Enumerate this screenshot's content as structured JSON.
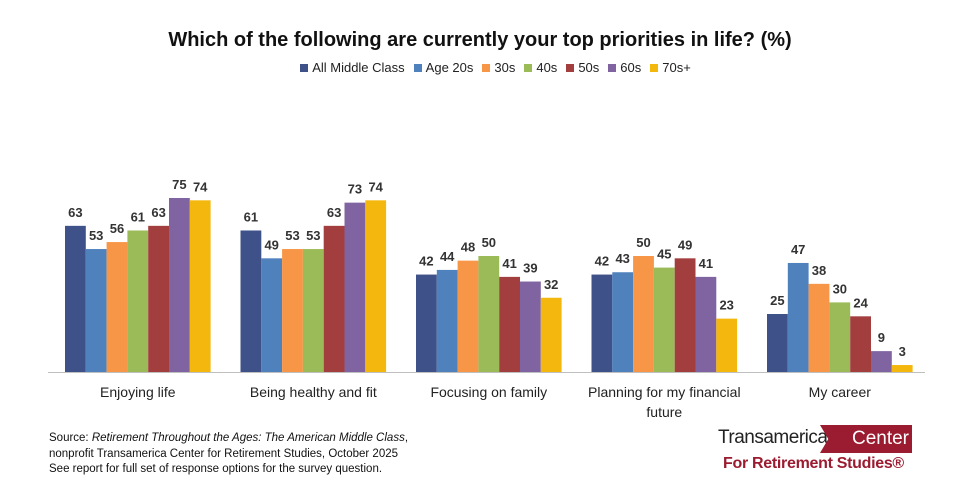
{
  "chart_data": {
    "type": "bar",
    "title": "Which of the following are currently your top priorities in life? (%)",
    "categories": [
      "Enjoying life",
      "Being healthy and fit",
      "Focusing on family",
      "Planning for my financial future",
      "My career"
    ],
    "series": [
      {
        "name": "All Middle Class",
        "color": "#3f5189",
        "values": [
          63,
          61,
          42,
          42,
          25
        ]
      },
      {
        "name": "Age 20s",
        "color": "#4f81bd",
        "values": [
          53,
          49,
          44,
          43,
          47
        ]
      },
      {
        "name": "30s",
        "color": "#f79646",
        "values": [
          56,
          53,
          48,
          50,
          38
        ]
      },
      {
        "name": "40s",
        "color": "#9bbb59",
        "values": [
          61,
          53,
          50,
          45,
          30
        ]
      },
      {
        "name": "50s",
        "color": "#a33e3e",
        "values": [
          63,
          63,
          41,
          49,
          24
        ]
      },
      {
        "name": "60s",
        "color": "#8064a2",
        "values": [
          75,
          73,
          39,
          41,
          9
        ]
      },
      {
        "name": "70s+",
        "color": "#f3b70e",
        "values": [
          74,
          74,
          32,
          23,
          3
        ]
      }
    ],
    "ylim": [
      0,
      80
    ],
    "grid": false,
    "legend": "top"
  },
  "source": {
    "prefix": "Source: ",
    "report": "Retirement Throughout the Ages: The American Middle Class",
    "comma": ",",
    "line2": "nonprofit Transamerica Center for Retirement Studies, October 2025",
    "line3": "See report for full set of response options for the survey question."
  },
  "logo": {
    "word1": "Transamerica",
    "word2": "Center",
    "line2": "For Retirement Studies®"
  }
}
